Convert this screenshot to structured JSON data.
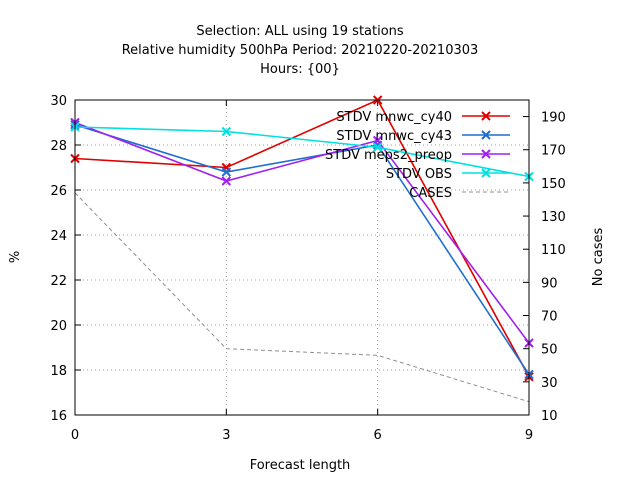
{
  "chart_data": {
    "type": "line",
    "title_lines": [
      "Selection: ALL using    19 stations",
      "Relative humidity 500hPa   Period: 20210220-20210303",
      "Hours: {00}"
    ],
    "xlabel": "Forecast length",
    "ylabel": "%",
    "y2label": "No cases",
    "x": [
      0,
      3,
      6,
      9
    ],
    "xlim": [
      0,
      9
    ],
    "ylim": [
      16,
      30
    ],
    "y2lim": [
      10,
      200
    ],
    "xticks": [
      "0",
      "3",
      "6",
      "9"
    ],
    "yticks": [
      "16",
      "18",
      "20",
      "22",
      "24",
      "26",
      "28",
      "30"
    ],
    "y2ticks": [
      "10",
      "30",
      "50",
      "70",
      "90",
      "110",
      "130",
      "150",
      "170",
      "190"
    ],
    "grid": true,
    "legend_position": "top-right",
    "series": [
      {
        "name": "STDV mnwc_cy40",
        "color": "#e00000",
        "marker": "x",
        "axis": "y1",
        "values": [
          27.4,
          27.0,
          30.0,
          17.7
        ]
      },
      {
        "name": "STDV mnwc_cy43",
        "color": "#1f6fd0",
        "marker": "x",
        "axis": "y1",
        "values": [
          28.9,
          26.8,
          28.0,
          17.8
        ]
      },
      {
        "name": "STDV meps2_preop",
        "color": "#a020f0",
        "marker": "x",
        "axis": "y1",
        "values": [
          29.0,
          26.4,
          28.2,
          19.2
        ]
      },
      {
        "name": "STDV OBS",
        "color": "#00e0e0",
        "marker": "x",
        "axis": "y1",
        "values": [
          28.8,
          28.6,
          27.9,
          26.6
        ]
      },
      {
        "name": "CASES",
        "color": "#909090",
        "marker": "none",
        "dash": true,
        "axis": "y2",
        "values": [
          144,
          50,
          46,
          18
        ]
      }
    ]
  }
}
